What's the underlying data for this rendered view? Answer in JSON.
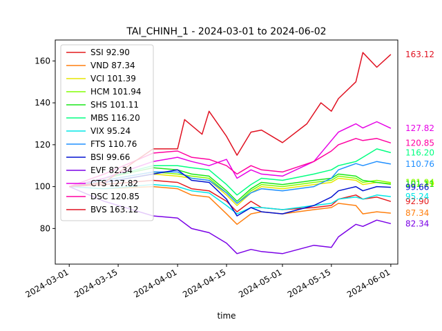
{
  "chart_data": {
    "type": "line",
    "title": "TAI_CHINH_1 - 2024-03-01 to 2024-06-02",
    "xlabel": "time",
    "ylabel": "",
    "xlim": [
      "2024-02-26",
      "2024-06-03"
    ],
    "ylim": [
      63,
      170
    ],
    "x_ticks": [
      "2024-03-01",
      "2024-03-15",
      "2024-04-01",
      "2024-04-15",
      "2024-05-01",
      "2024-05-15",
      "2024-06-01"
    ],
    "y_ticks": [
      80,
      100,
      120,
      140,
      160
    ],
    "grid": false,
    "legend_position": "top-left",
    "series": [
      {
        "name": "SSI 92.90",
        "color": "#e41a1c",
        "end_label": "92.90",
        "points": [
          [
            "2024-03-01",
            100
          ],
          [
            "2024-03-11",
            101
          ],
          [
            "2024-03-25",
            103
          ],
          [
            "2024-04-01",
            102
          ],
          [
            "2024-04-05",
            99
          ],
          [
            "2024-04-10",
            98
          ],
          [
            "2024-04-15",
            93
          ],
          [
            "2024-04-18",
            88
          ],
          [
            "2024-04-22",
            93
          ],
          [
            "2024-04-25",
            90
          ],
          [
            "2024-05-01",
            89
          ],
          [
            "2024-05-10",
            90
          ],
          [
            "2024-05-15",
            91
          ],
          [
            "2024-05-17",
            94
          ],
          [
            "2024-05-22",
            96
          ],
          [
            "2024-05-24",
            94
          ],
          [
            "2024-05-28",
            95
          ],
          [
            "2024-06-01",
            92.9
          ]
        ]
      },
      {
        "name": "VND 87.34",
        "color": "#ff7f0e",
        "end_label": "87.34",
        "points": [
          [
            "2024-03-01",
            100
          ],
          [
            "2024-03-11",
            99
          ],
          [
            "2024-03-25",
            100
          ],
          [
            "2024-04-01",
            99
          ],
          [
            "2024-04-05",
            96
          ],
          [
            "2024-04-10",
            95
          ],
          [
            "2024-04-15",
            87
          ],
          [
            "2024-04-18",
            82
          ],
          [
            "2024-04-22",
            87
          ],
          [
            "2024-04-25",
            88
          ],
          [
            "2024-05-01",
            87
          ],
          [
            "2024-05-10",
            89
          ],
          [
            "2024-05-15",
            90
          ],
          [
            "2024-05-17",
            92
          ],
          [
            "2024-05-22",
            91
          ],
          [
            "2024-05-24",
            87
          ],
          [
            "2024-05-28",
            88
          ],
          [
            "2024-06-01",
            87.34
          ]
        ]
      },
      {
        "name": "VCI 101.39",
        "color": "#e6e600",
        "end_label": "101.39",
        "points": [
          [
            "2024-03-01",
            100
          ],
          [
            "2024-03-11",
            102
          ],
          [
            "2024-03-25",
            106
          ],
          [
            "2024-04-01",
            105
          ],
          [
            "2024-04-05",
            104
          ],
          [
            "2024-04-10",
            103
          ],
          [
            "2024-04-15",
            96
          ],
          [
            "2024-04-18",
            91
          ],
          [
            "2024-04-22",
            97
          ],
          [
            "2024-04-25",
            100
          ],
          [
            "2024-05-01",
            99
          ],
          [
            "2024-05-10",
            101
          ],
          [
            "2024-05-15",
            102
          ],
          [
            "2024-05-17",
            104
          ],
          [
            "2024-05-22",
            103
          ],
          [
            "2024-05-24",
            101
          ],
          [
            "2024-05-28",
            102
          ],
          [
            "2024-06-01",
            101.39
          ]
        ]
      },
      {
        "name": "HCM 101.94",
        "color": "#80ff00",
        "end_label": "101.94",
        "points": [
          [
            "2024-03-01",
            100
          ],
          [
            "2024-03-11",
            103
          ],
          [
            "2024-03-25",
            107
          ],
          [
            "2024-04-01",
            106
          ],
          [
            "2024-04-05",
            105
          ],
          [
            "2024-04-10",
            104
          ],
          [
            "2024-04-15",
            97
          ],
          [
            "2024-04-18",
            92
          ],
          [
            "2024-04-22",
            98
          ],
          [
            "2024-04-25",
            101
          ],
          [
            "2024-05-01",
            100
          ],
          [
            "2024-05-10",
            102
          ],
          [
            "2024-05-15",
            103
          ],
          [
            "2024-05-17",
            105
          ],
          [
            "2024-05-22",
            104
          ],
          [
            "2024-05-24",
            102
          ],
          [
            "2024-05-28",
            103
          ],
          [
            "2024-06-01",
            101.94
          ]
        ]
      },
      {
        "name": "SHS 101.11",
        "color": "#19e619",
        "end_label": "101.11",
        "points": [
          [
            "2024-03-01",
            100
          ],
          [
            "2024-03-11",
            104
          ],
          [
            "2024-03-25",
            109
          ],
          [
            "2024-04-01",
            108
          ],
          [
            "2024-04-05",
            106
          ],
          [
            "2024-04-10",
            105
          ],
          [
            "2024-04-15",
            98
          ],
          [
            "2024-04-18",
            93
          ],
          [
            "2024-04-22",
            99
          ],
          [
            "2024-04-25",
            102
          ],
          [
            "2024-05-01",
            101
          ],
          [
            "2024-05-10",
            103
          ],
          [
            "2024-05-15",
            104
          ],
          [
            "2024-05-17",
            106
          ],
          [
            "2024-05-22",
            105
          ],
          [
            "2024-05-24",
            103
          ],
          [
            "2024-05-28",
            102
          ],
          [
            "2024-06-01",
            101.11
          ]
        ]
      },
      {
        "name": "MBS 116.20",
        "color": "#00ff80",
        "end_label": "116.20",
        "points": [
          [
            "2024-03-01",
            100
          ],
          [
            "2024-03-11",
            104
          ],
          [
            "2024-03-25",
            110
          ],
          [
            "2024-04-01",
            110
          ],
          [
            "2024-04-05",
            109
          ],
          [
            "2024-04-10",
            108
          ],
          [
            "2024-04-15",
            101
          ],
          [
            "2024-04-18",
            96
          ],
          [
            "2024-04-22",
            101
          ],
          [
            "2024-04-25",
            104
          ],
          [
            "2024-05-01",
            103
          ],
          [
            "2024-05-10",
            106
          ],
          [
            "2024-05-15",
            108
          ],
          [
            "2024-05-17",
            110
          ],
          [
            "2024-05-22",
            112
          ],
          [
            "2024-05-24",
            114
          ],
          [
            "2024-05-28",
            118
          ],
          [
            "2024-06-01",
            116.2
          ]
        ]
      },
      {
        "name": "VIX 95.24",
        "color": "#00e6e6",
        "end_label": "95.24",
        "points": [
          [
            "2024-03-01",
            100
          ],
          [
            "2024-03-11",
            99
          ],
          [
            "2024-03-25",
            101
          ],
          [
            "2024-04-01",
            100
          ],
          [
            "2024-04-05",
            98
          ],
          [
            "2024-04-10",
            97
          ],
          [
            "2024-04-15",
            91
          ],
          [
            "2024-04-18",
            87
          ],
          [
            "2024-04-22",
            90
          ],
          [
            "2024-04-25",
            90
          ],
          [
            "2024-05-01",
            89
          ],
          [
            "2024-05-10",
            91
          ],
          [
            "2024-05-15",
            92
          ],
          [
            "2024-05-17",
            94
          ],
          [
            "2024-05-22",
            95
          ],
          [
            "2024-05-24",
            94
          ],
          [
            "2024-05-28",
            96
          ],
          [
            "2024-06-01",
            95.24
          ]
        ]
      },
      {
        "name": "FTS 110.76",
        "color": "#1f8fff",
        "end_label": "110.76",
        "points": [
          [
            "2024-03-01",
            100
          ],
          [
            "2024-03-11",
            103
          ],
          [
            "2024-03-25",
            107
          ],
          [
            "2024-04-01",
            107
          ],
          [
            "2024-04-05",
            104
          ],
          [
            "2024-04-10",
            103
          ],
          [
            "2024-04-15",
            97
          ],
          [
            "2024-04-18",
            92
          ],
          [
            "2024-04-22",
            97
          ],
          [
            "2024-04-25",
            99
          ],
          [
            "2024-05-01",
            98
          ],
          [
            "2024-05-10",
            100
          ],
          [
            "2024-05-15",
            104
          ],
          [
            "2024-05-17",
            108
          ],
          [
            "2024-05-22",
            111
          ],
          [
            "2024-05-24",
            110
          ],
          [
            "2024-05-28",
            112
          ],
          [
            "2024-06-01",
            110.76
          ]
        ]
      },
      {
        "name": "BSI 99.66",
        "color": "#0010d0",
        "end_label": "99.66",
        "points": [
          [
            "2024-03-01",
            100
          ],
          [
            "2024-03-11",
            102
          ],
          [
            "2024-03-25",
            106
          ],
          [
            "2024-04-01",
            108
          ],
          [
            "2024-04-05",
            103
          ],
          [
            "2024-04-10",
            102
          ],
          [
            "2024-04-15",
            94
          ],
          [
            "2024-04-18",
            86
          ],
          [
            "2024-04-22",
            90
          ],
          [
            "2024-04-25",
            88
          ],
          [
            "2024-05-01",
            87
          ],
          [
            "2024-05-10",
            91
          ],
          [
            "2024-05-15",
            95
          ],
          [
            "2024-05-17",
            98
          ],
          [
            "2024-05-22",
            100
          ],
          [
            "2024-05-24",
            98
          ],
          [
            "2024-05-28",
            100
          ],
          [
            "2024-06-01",
            99.66
          ]
        ]
      },
      {
        "name": "EVF 82.34",
        "color": "#7a00e6",
        "end_label": "82.34",
        "points": [
          [
            "2024-03-01",
            100
          ],
          [
            "2024-03-11",
            93
          ],
          [
            "2024-03-25",
            86
          ],
          [
            "2024-04-01",
            85
          ],
          [
            "2024-04-05",
            80
          ],
          [
            "2024-04-10",
            78
          ],
          [
            "2024-04-15",
            73
          ],
          [
            "2024-04-18",
            68
          ],
          [
            "2024-04-22",
            70
          ],
          [
            "2024-04-25",
            69
          ],
          [
            "2024-05-01",
            68
          ],
          [
            "2024-05-10",
            72
          ],
          [
            "2024-05-15",
            71
          ],
          [
            "2024-05-17",
            76
          ],
          [
            "2024-05-22",
            82
          ],
          [
            "2024-05-24",
            81
          ],
          [
            "2024-05-28",
            84
          ],
          [
            "2024-06-01",
            82.34
          ]
        ]
      },
      {
        "name": "CTS 127.82",
        "color": "#e600e6",
        "end_label": "127.82",
        "points": [
          [
            "2024-03-01",
            100
          ],
          [
            "2024-03-11",
            104
          ],
          [
            "2024-03-25",
            112
          ],
          [
            "2024-04-01",
            114
          ],
          [
            "2024-04-05",
            112
          ],
          [
            "2024-04-10",
            110
          ],
          [
            "2024-04-15",
            113
          ],
          [
            "2024-04-18",
            104
          ],
          [
            "2024-04-22",
            108
          ],
          [
            "2024-04-25",
            106
          ],
          [
            "2024-05-01",
            105
          ],
          [
            "2024-05-10",
            112
          ],
          [
            "2024-05-15",
            122
          ],
          [
            "2024-05-17",
            126
          ],
          [
            "2024-05-22",
            130
          ],
          [
            "2024-05-24",
            128
          ],
          [
            "2024-05-28",
            131
          ],
          [
            "2024-06-01",
            127.82
          ]
        ]
      },
      {
        "name": "DSC 120.85",
        "color": "#ff00a0",
        "end_label": "120.85",
        "points": [
          [
            "2024-03-01",
            100
          ],
          [
            "2024-03-11",
            106
          ],
          [
            "2024-03-25",
            116
          ],
          [
            "2024-04-01",
            117
          ],
          [
            "2024-04-05",
            114
          ],
          [
            "2024-04-10",
            113
          ],
          [
            "2024-04-15",
            110
          ],
          [
            "2024-04-18",
            106
          ],
          [
            "2024-04-22",
            110
          ],
          [
            "2024-04-25",
            108
          ],
          [
            "2024-05-01",
            107
          ],
          [
            "2024-05-10",
            112
          ],
          [
            "2024-05-15",
            117
          ],
          [
            "2024-05-17",
            120
          ],
          [
            "2024-05-22",
            123
          ],
          [
            "2024-05-24",
            122
          ],
          [
            "2024-05-28",
            123
          ],
          [
            "2024-06-01",
            120.85
          ]
        ]
      },
      {
        "name": "BVS 163.12",
        "color": "#e01020",
        "end_label": "163.12",
        "points": [
          [
            "2024-03-01",
            100
          ],
          [
            "2024-03-11",
            102
          ],
          [
            "2024-03-25",
            118
          ],
          [
            "2024-04-01",
            118
          ],
          [
            "2024-04-03",
            132
          ],
          [
            "2024-04-08",
            125
          ],
          [
            "2024-04-10",
            136
          ],
          [
            "2024-04-15",
            124
          ],
          [
            "2024-04-18",
            115
          ],
          [
            "2024-04-22",
            126
          ],
          [
            "2024-04-25",
            127
          ],
          [
            "2024-05-01",
            121
          ],
          [
            "2024-05-08",
            130
          ],
          [
            "2024-05-12",
            140
          ],
          [
            "2024-05-15",
            136
          ],
          [
            "2024-05-17",
            142
          ],
          [
            "2024-05-22",
            150
          ],
          [
            "2024-05-24",
            164
          ],
          [
            "2024-05-28",
            157
          ],
          [
            "2024-06-01",
            163.12
          ]
        ]
      }
    ]
  }
}
